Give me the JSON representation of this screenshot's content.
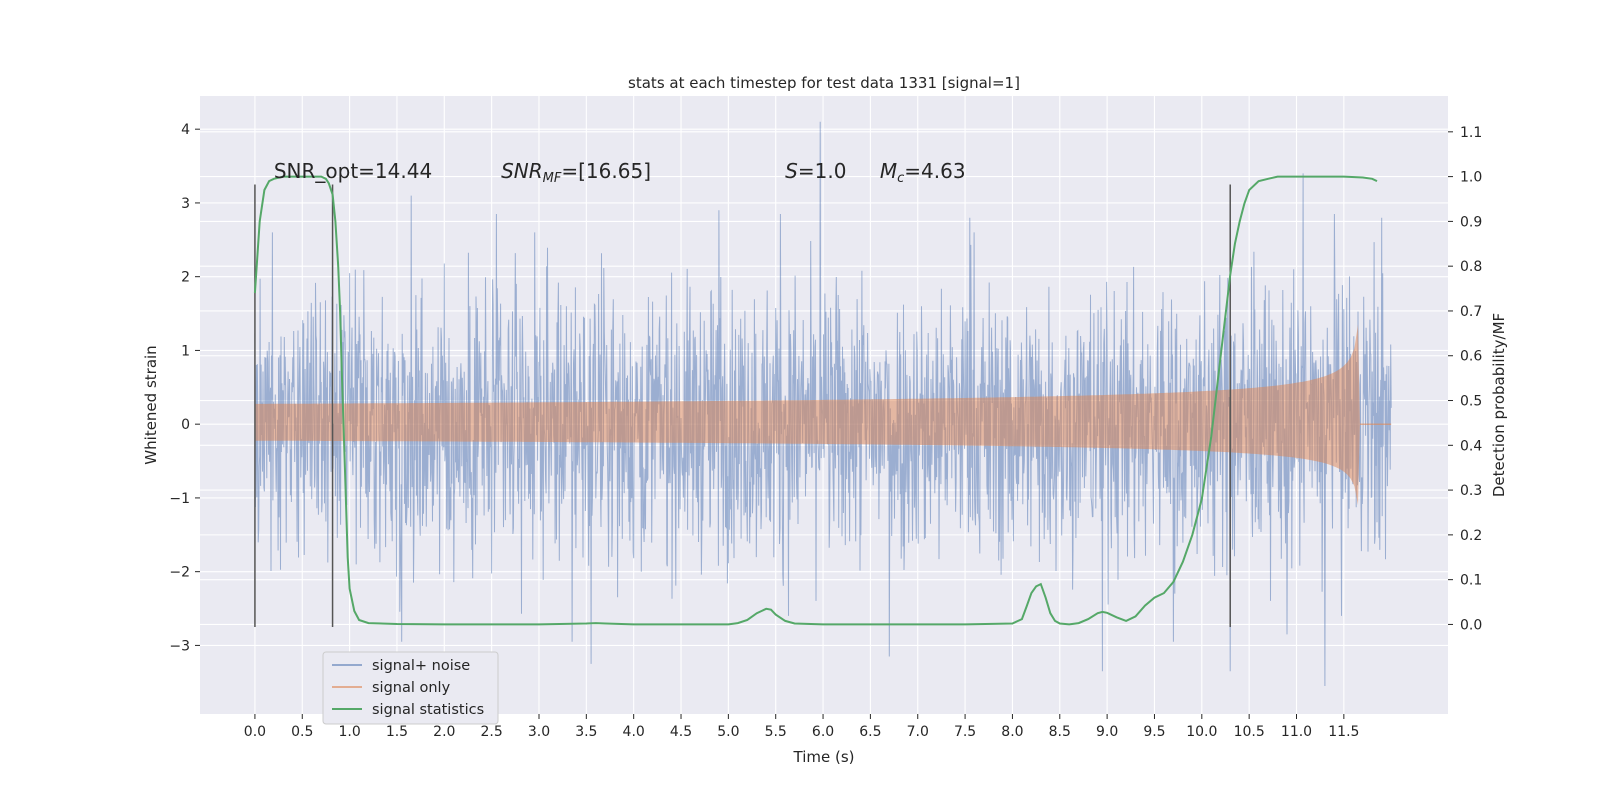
{
  "chart_data": {
    "type": "line",
    "title": "stats at each timestep for test data 1331 [signal=1]",
    "xlabel": "Time (s)",
    "ylabel": "Whitened strain",
    "ylabel_right": "Detection probability/MF",
    "xlim": [
      -0.58,
      12.6
    ],
    "ylim": [
      -3.93,
      4.45
    ],
    "ylim_right": [
      -0.2,
      1.18
    ],
    "x_ticks": [
      0.0,
      0.5,
      1.0,
      1.5,
      2.0,
      2.5,
      3.0,
      3.5,
      4.0,
      4.5,
      5.0,
      5.5,
      6.0,
      6.5,
      7.0,
      7.5,
      8.0,
      8.5,
      9.0,
      9.5,
      10.0,
      10.5,
      11.0,
      11.5
    ],
    "x_tick_labels": [
      "0.0",
      "0.5",
      "1.0",
      "1.5",
      "2.0",
      "2.5",
      "3.0",
      "3.5",
      "4.0",
      "4.5",
      "5.0",
      "5.5",
      "6.0",
      "6.5",
      "7.0",
      "7.5",
      "8.0",
      "8.5",
      "9.0",
      "9.5",
      "10.0",
      "10.5",
      "11.0",
      "11.5"
    ],
    "y_ticks": [
      4,
      3,
      2,
      1,
      0,
      -1,
      -2,
      -3
    ],
    "y_tick_labels": [
      "4",
      "3",
      "2",
      "1",
      "0",
      "−1",
      "−2",
      "−3"
    ],
    "y_ticks_right": [
      1.1,
      1.0,
      0.9,
      0.8,
      0.7,
      0.6,
      0.5,
      0.4,
      0.3,
      0.2,
      0.1,
      0.0
    ],
    "y_tick_labels_right": [
      "1.1",
      "1.0",
      "0.9",
      "0.8",
      "0.7",
      "0.6",
      "0.5",
      "0.4",
      "0.3",
      "0.2",
      "0.1",
      "0.0"
    ],
    "grid": true,
    "legend_position": "lower-left",
    "series": [
      {
        "name": "signal+ noise",
        "axis": "left",
        "color": "#4c72b0",
        "alpha": 0.5,
        "x_range": [
          0.0,
          12.0
        ],
        "typical_range": [
          -1.5,
          1.5
        ],
        "peaks": [
          {
            "x": 5.97,
            "y": 4.1
          },
          {
            "x": 11.07,
            "y": 3.4
          },
          {
            "x": 1.65,
            "y": 3.1
          },
          {
            "x": 2.55,
            "y": 2.85
          },
          {
            "x": 4.9,
            "y": 2.9
          },
          {
            "x": 5.55,
            "y": 2.85
          },
          {
            "x": 7.55,
            "y": 2.8
          },
          {
            "x": 11.4,
            "y": 2.85
          },
          {
            "x": 11.9,
            "y": 2.8
          },
          {
            "x": 3.55,
            "y": -3.25
          },
          {
            "x": 6.7,
            "y": -3.15
          },
          {
            "x": 8.95,
            "y": -3.35
          },
          {
            "x": 11.3,
            "y": -3.55
          },
          {
            "x": 10.3,
            "y": -3.35
          },
          {
            "x": 1.55,
            "y": -2.95
          },
          {
            "x": 3.35,
            "y": -2.95
          },
          {
            "x": 9.7,
            "y": -2.95
          },
          {
            "x": 10.9,
            "y": -2.85
          }
        ]
      },
      {
        "name": "signal only",
        "axis": "left",
        "color": "#dd8452",
        "alpha": 0.5,
        "envelope": {
          "x_start": 0.0,
          "x_end": 11.65,
          "peak_upper": 1.35,
          "peak_lower": -1.1
        }
      },
      {
        "name": "signal statistics",
        "axis": "right",
        "color": "#55a868",
        "x": [
          0.0,
          0.05,
          0.1,
          0.15,
          0.2,
          0.3,
          0.4,
          0.5,
          0.6,
          0.7,
          0.75,
          0.78,
          0.82,
          0.85,
          0.88,
          0.9,
          0.92,
          0.95,
          0.98,
          1.0,
          1.05,
          1.1,
          1.2,
          1.5,
          2.0,
          2.5,
          3.0,
          3.5,
          3.6,
          3.7,
          4.0,
          4.5,
          5.0,
          5.1,
          5.2,
          5.3,
          5.4,
          5.45,
          5.5,
          5.6,
          5.7,
          6.0,
          6.5,
          7.0,
          7.5,
          8.0,
          8.1,
          8.15,
          8.2,
          8.25,
          8.3,
          8.35,
          8.4,
          8.45,
          8.5,
          8.6,
          8.7,
          8.8,
          8.9,
          8.95,
          9.0,
          9.1,
          9.2,
          9.3,
          9.4,
          9.5,
          9.6,
          9.7,
          9.8,
          9.9,
          10.0,
          10.1,
          10.2,
          10.3,
          10.35,
          10.4,
          10.45,
          10.5,
          10.6,
          10.7,
          10.8,
          11.0,
          11.2,
          11.5,
          11.7,
          11.8,
          11.85
        ],
        "values": [
          0.74,
          0.9,
          0.97,
          0.99,
          0.995,
          1.0,
          1.0,
          1.0,
          1.0,
          1.0,
          0.995,
          0.985,
          0.96,
          0.9,
          0.8,
          0.7,
          0.55,
          0.35,
          0.15,
          0.08,
          0.03,
          0.01,
          0.003,
          0.001,
          0.0,
          0.0,
          0.0,
          0.002,
          0.003,
          0.002,
          0.0,
          0.0,
          0.0,
          0.003,
          0.01,
          0.025,
          0.035,
          0.033,
          0.022,
          0.008,
          0.002,
          0.0,
          0.0,
          0.0,
          0.0,
          0.002,
          0.012,
          0.04,
          0.07,
          0.085,
          0.09,
          0.06,
          0.025,
          0.008,
          0.002,
          0.0,
          0.003,
          0.012,
          0.025,
          0.028,
          0.026,
          0.016,
          0.008,
          0.018,
          0.042,
          0.06,
          0.07,
          0.095,
          0.14,
          0.2,
          0.28,
          0.42,
          0.6,
          0.78,
          0.85,
          0.9,
          0.94,
          0.97,
          0.99,
          0.995,
          1.0,
          1.0,
          1.0,
          1.0,
          0.998,
          0.995,
          0.99
        ]
      }
    ],
    "vertical_lines": [
      0.0,
      0.82,
      10.3
    ],
    "vertical_lines_y": [
      -2.75,
      3.25
    ],
    "annotations": [
      {
        "text": "SNR_opt=14.44",
        "x": 0.2,
        "y": 3.34
      },
      {
        "text": "SNR",
        "sub": "MF",
        "suffix": "=[16.65]",
        "italic": true,
        "x": 2.6,
        "y": 3.34
      },
      {
        "text": "S",
        "suffix": "=1.0",
        "italic": true,
        "x": 5.6,
        "y": 3.34
      },
      {
        "text": "M",
        "sub": "c",
        "suffix": "=4.63",
        "italic": true,
        "x": 6.6,
        "y": 3.34
      }
    ]
  },
  "colors": {
    "plot_background": "#eaeaf2",
    "grid": "#ffffff",
    "vline": "#555555",
    "legend_background": "#eaeaf2",
    "legend_border": "#cccccc"
  }
}
